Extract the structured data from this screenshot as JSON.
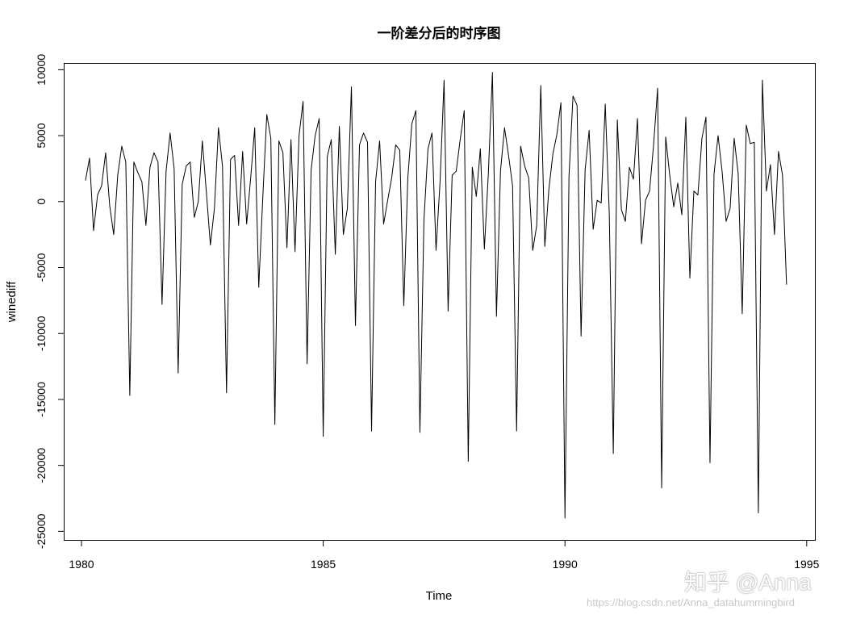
{
  "chart_data": {
    "type": "line",
    "title": "一阶差分后的时序图",
    "xlabel": "Time",
    "ylabel": "winediff",
    "xlim": [
      1979.65,
      1995.17
    ],
    "ylim": [
      -25650,
      10450
    ],
    "x_ticks": [
      1980,
      1985,
      1990,
      1995
    ],
    "x_tick_labels": [
      "1980",
      "1985",
      "1990",
      "1995"
    ],
    "y_ticks": [
      -25000,
      -20000,
      -15000,
      -10000,
      -5000,
      0,
      5000,
      10000
    ],
    "y_tick_labels": [
      "-25000",
      "-20000",
      "-15000",
      "-10000",
      "-5000",
      "0",
      "5000",
      "10000"
    ],
    "grid": false,
    "series": [
      {
        "x_start": 1980.0833,
        "frequency": 12,
        "color": "#000000",
        "values": [
          1600,
          3300,
          -2200,
          500,
          1200,
          3700,
          -300,
          -2500,
          2000,
          4200,
          3000,
          -14700,
          3000,
          2200,
          1500,
          -1800,
          2600,
          3700,
          3000,
          -7800,
          2300,
          5200,
          2500,
          -13000,
          1300,
          2700,
          3000,
          -1200,
          0,
          4600,
          700,
          -3300,
          -500,
          5600,
          2700,
          -14500,
          3200,
          3500,
          -1800,
          3800,
          -1700,
          1800,
          5600,
          -6500,
          300,
          6600,
          4800,
          -16900,
          4600,
          3700,
          -3500,
          4700,
          -3800,
          5000,
          7600,
          -12300,
          2400,
          5000,
          6300,
          -17800,
          3400,
          4700,
          -4000,
          5700,
          -2500,
          -500,
          8700,
          -9400,
          4300,
          5200,
          4500,
          -17400,
          1500,
          4600,
          -1700,
          100,
          1800,
          4300,
          3900,
          -7900,
          1800,
          5900,
          6900,
          -17500,
          -1400,
          4000,
          5200,
          -3700,
          1500,
          9200,
          -8300,
          2000,
          2300,
          4700,
          6900,
          -19700,
          2600,
          400,
          4000,
          -3600,
          2200,
          9800,
          -8700,
          2300,
          5600,
          3500,
          1200,
          -17400,
          4200,
          2700,
          1800,
          -3700,
          -1800,
          8800,
          -3400,
          900,
          3600,
          5100,
          7500,
          -24000,
          1900,
          8000,
          7300,
          -10200,
          2400,
          5400,
          -2100,
          100,
          -100,
          7400,
          -900,
          -19100,
          6200,
          -600,
          -1500,
          2600,
          1700,
          6300,
          -3200,
          100,
          800,
          4300,
          8600,
          -21700,
          4900,
          2000,
          -400,
          1400,
          -1000,
          6400,
          -5800,
          800,
          500,
          4800,
          6400,
          -19800,
          2100,
          5000,
          2300,
          -1500,
          -500,
          4800,
          2100,
          -8500,
          5800,
          4400,
          4500,
          -23600,
          9200,
          800,
          2800,
          -2500,
          3800,
          2000,
          -6300
        ]
      }
    ]
  },
  "watermark": {
    "brand": "知乎 @Anna",
    "url": "https://blog.csdn.net/Anna_datahummingbird"
  }
}
